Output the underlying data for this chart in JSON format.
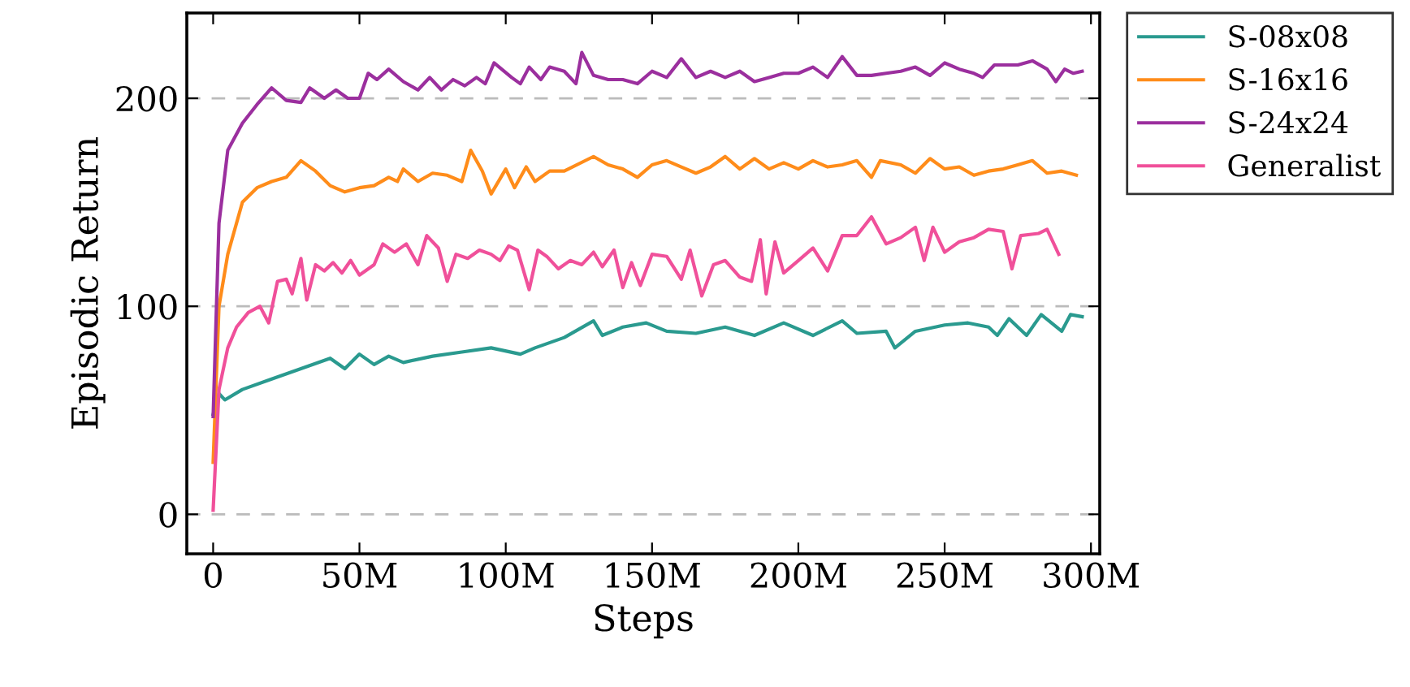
{
  "chart_data": {
    "type": "line",
    "xlabel": "Steps",
    "ylabel": "Episodic Return",
    "xlim": [
      -9,
      303
    ],
    "ylim": [
      -19,
      241
    ],
    "xticks": [
      {
        "value": 0,
        "label": "0"
      },
      {
        "value": 50,
        "label": "50M"
      },
      {
        "value": 100,
        "label": "100M"
      },
      {
        "value": 150,
        "label": "150M"
      },
      {
        "value": 200,
        "label": "200M"
      },
      {
        "value": 250,
        "label": "250M"
      },
      {
        "value": 300,
        "label": "300M"
      }
    ],
    "yticks": [
      0,
      100,
      200
    ],
    "grid": "y",
    "legend": "top right",
    "line_style": "solid",
    "marker": "none",
    "series": [
      {
        "name": "S-08x08",
        "color": "#2a9a8f",
        "x": [
          0,
          2,
          4,
          10,
          20,
          30,
          40,
          45,
          50,
          55,
          60,
          65,
          75,
          85,
          95,
          105,
          110,
          120,
          130,
          133,
          140,
          148,
          155,
          165,
          175,
          185,
          195,
          205,
          215,
          220,
          230,
          233,
          240,
          250,
          258,
          265,
          268,
          272,
          278,
          283,
          290,
          293,
          297
        ],
        "values": [
          48,
          58,
          55,
          60,
          65,
          70,
          75,
          70,
          77,
          72,
          76,
          73,
          76,
          78,
          80,
          77,
          80,
          85,
          93,
          86,
          90,
          92,
          88,
          87,
          90,
          86,
          92,
          86,
          93,
          87,
          88,
          80,
          88,
          91,
          92,
          90,
          86,
          94,
          86,
          96,
          88,
          96,
          95
        ]
      },
      {
        "name": "S-16x16",
        "color": "#ff8c1a",
        "x": [
          0,
          2,
          5,
          10,
          15,
          20,
          25,
          30,
          35,
          40,
          45,
          50,
          55,
          60,
          63,
          65,
          70,
          75,
          80,
          85,
          88,
          92,
          95,
          100,
          103,
          107,
          110,
          115,
          120,
          130,
          135,
          140,
          145,
          150,
          155,
          160,
          165,
          170,
          175,
          180,
          185,
          190,
          195,
          200,
          205,
          210,
          215,
          220,
          225,
          228,
          235,
          240,
          245,
          250,
          255,
          260,
          265,
          270,
          275,
          280,
          285,
          290,
          295
        ],
        "values": [
          25,
          100,
          125,
          150,
          157,
          160,
          162,
          170,
          165,
          158,
          155,
          157,
          158,
          162,
          160,
          166,
          160,
          164,
          163,
          160,
          175,
          165,
          154,
          166,
          157,
          167,
          160,
          165,
          165,
          172,
          168,
          166,
          162,
          168,
          170,
          167,
          164,
          167,
          172,
          166,
          171,
          166,
          169,
          166,
          170,
          167,
          168,
          170,
          162,
          170,
          168,
          164,
          171,
          166,
          167,
          163,
          165,
          166,
          168,
          170,
          164,
          165,
          163
        ]
      },
      {
        "name": "S-24x24",
        "color": "#9b2f9e",
        "x": [
          0,
          2,
          5,
          10,
          15,
          20,
          25,
          30,
          33,
          38,
          42,
          46,
          50,
          53,
          56,
          60,
          65,
          70,
          74,
          78,
          82,
          86,
          90,
          93,
          96,
          102,
          105,
          108,
          112,
          115,
          120,
          124,
          126,
          130,
          135,
          140,
          145,
          150,
          155,
          160,
          165,
          170,
          175,
          180,
          185,
          190,
          195,
          200,
          205,
          210,
          215,
          220,
          225,
          230,
          235,
          240,
          245,
          250,
          255,
          260,
          263,
          267,
          275,
          280,
          285,
          288,
          291,
          294,
          297
        ],
        "values": [
          47,
          140,
          175,
          188,
          197,
          205,
          199,
          198,
          205,
          200,
          204,
          200,
          200,
          212,
          209,
          214,
          208,
          204,
          210,
          204,
          209,
          206,
          210,
          207,
          217,
          210,
          207,
          215,
          209,
          215,
          213,
          207,
          222,
          211,
          209,
          209,
          207,
          213,
          210,
          219,
          210,
          213,
          210,
          213,
          208,
          210,
          212,
          212,
          215,
          210,
          220,
          211,
          211,
          212,
          213,
          215,
          211,
          217,
          214,
          212,
          210,
          216,
          216,
          218,
          214,
          208,
          214,
          212,
          213
        ]
      },
      {
        "name": "Generalist",
        "color": "#f0509a",
        "x": [
          0,
          2,
          5,
          8,
          12,
          16,
          19,
          22,
          25,
          27,
          30,
          32,
          35,
          38,
          41,
          44,
          47,
          50,
          55,
          58,
          62,
          66,
          70,
          73,
          77,
          80,
          83,
          87,
          91,
          95,
          98,
          101,
          104,
          108,
          111,
          114,
          118,
          122,
          126,
          130,
          133,
          137,
          140,
          143,
          146,
          150,
          155,
          160,
          163,
          167,
          171,
          175,
          180,
          184,
          187,
          189,
          192,
          195,
          200,
          205,
          210,
          215,
          220,
          225,
          230,
          235,
          240,
          243,
          246,
          250,
          255,
          260,
          265,
          270,
          273,
          276,
          282,
          285,
          289
        ],
        "values": [
          2,
          60,
          80,
          90,
          97,
          100,
          92,
          112,
          113,
          106,
          123,
          103,
          120,
          117,
          121,
          116,
          122,
          115,
          120,
          130,
          126,
          130,
          120,
          134,
          128,
          112,
          125,
          123,
          127,
          125,
          122,
          129,
          127,
          108,
          127,
          124,
          118,
          122,
          120,
          126,
          119,
          127,
          109,
          121,
          110,
          125,
          124,
          113,
          127,
          105,
          120,
          122,
          114,
          112,
          132,
          106,
          131,
          116,
          122,
          128,
          117,
          134,
          134,
          143,
          130,
          133,
          138,
          122,
          138,
          126,
          131,
          133,
          137,
          136,
          118,
          134,
          135,
          137,
          125
        ]
      }
    ]
  }
}
